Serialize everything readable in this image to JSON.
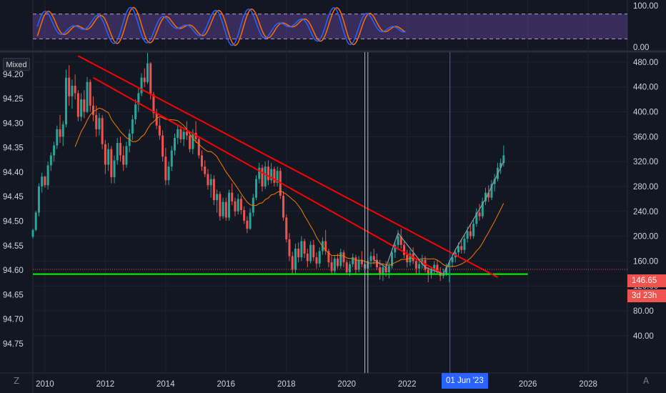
{
  "toolbar": {
    "scale_mode": "Mixed",
    "bottom_left_btn": "Z",
    "bottom_right_btn": "A"
  },
  "colors": {
    "background": "#131722",
    "grid": "#1f2330",
    "axis_line": "#2a2e39",
    "up": "#26a69a",
    "down": "#ef5350",
    "trendline": "#ff0000",
    "support": "#00ff00",
    "ma": "#f57c00",
    "rsi_k": "#2962ff",
    "rsi_d": "#ff6d00",
    "rsi_band": "#7e57c2",
    "crosshair": "#2962ff",
    "price_tag": "#ef5350"
  },
  "price_label": "146.65",
  "countdown_label": "3d 23h",
  "crosshair_date": "01 Jun '23",
  "chart_data": {
    "type": "candlestick",
    "x_ticks": [
      "2010",
      "2012",
      "2014",
      "2016",
      "2018",
      "2020",
      "2022",
      "2024",
      "2026",
      "2028"
    ],
    "xlim": [
      2009.6,
      2029.3
    ],
    "right_axis": {
      "ticks": [
        "480.00",
        "440.00",
        "400.00",
        "360.00",
        "320.00",
        "280.00",
        "240.00",
        "200.00",
        "160.00",
        "120.00",
        "80.00",
        "40.00"
      ],
      "ylim": [
        -20,
        496
      ]
    },
    "left_axis": {
      "ticks": [
        "94.20",
        "94.25",
        "94.30",
        "94.35",
        "94.40",
        "94.45",
        "94.50",
        "94.55",
        "94.60",
        "94.65",
        "94.70",
        "94.75"
      ],
      "ylim": [
        94.155,
        94.81
      ]
    },
    "oscillator": {
      "ticks": [
        "100.00",
        "0.00"
      ],
      "upper_band": 80,
      "lower_band": 20
    },
    "trendlines": [
      {
        "from": [
          2011.1,
          490
        ],
        "to": [
          2025.0,
          134
        ]
      },
      {
        "from": [
          2011.6,
          455
        ],
        "to": [
          2023.2,
          139
        ]
      }
    ],
    "support_line": {
      "value": 139,
      "from": 2009.6,
      "to": 2026.0
    },
    "vertical_markers": [
      2020.6,
      2020.7,
      2023.42
    ],
    "candles": [
      [
        2009.6,
        199,
        212,
        196,
        210
      ],
      [
        2009.7,
        210,
        241,
        208,
        238
      ],
      [
        2009.8,
        238,
        285,
        232,
        280
      ],
      [
        2009.9,
        280,
        302,
        270,
        296
      ],
      [
        2010.0,
        296,
        297,
        278,
        282
      ],
      [
        2010.1,
        282,
        320,
        275,
        314
      ],
      [
        2010.2,
        314,
        335,
        305,
        330
      ],
      [
        2010.3,
        330,
        352,
        320,
        346
      ],
      [
        2010.4,
        346,
        378,
        340,
        372
      ],
      [
        2010.5,
        372,
        395,
        350,
        360
      ],
      [
        2010.6,
        360,
        385,
        345,
        380
      ],
      [
        2010.7,
        380,
        468,
        375,
        455
      ],
      [
        2010.8,
        455,
        475,
        410,
        425
      ],
      [
        2010.9,
        425,
        452,
        405,
        442
      ],
      [
        2011.0,
        442,
        460,
        420,
        430
      ],
      [
        2011.1,
        430,
        435,
        385,
        392
      ],
      [
        2011.2,
        392,
        430,
        385,
        420
      ],
      [
        2011.3,
        420,
        435,
        390,
        400
      ],
      [
        2011.4,
        400,
        456,
        398,
        448
      ],
      [
        2011.5,
        448,
        452,
        400,
        410
      ],
      [
        2011.6,
        410,
        425,
        385,
        395
      ],
      [
        2011.7,
        395,
        410,
        360,
        372
      ],
      [
        2011.8,
        372,
        398,
        362,
        390
      ],
      [
        2011.9,
        390,
        395,
        340,
        348
      ],
      [
        2012.0,
        348,
        355,
        300,
        315
      ],
      [
        2012.1,
        315,
        350,
        305,
        340
      ],
      [
        2012.2,
        340,
        345,
        285,
        295
      ],
      [
        2012.3,
        295,
        330,
        285,
        322
      ],
      [
        2012.4,
        322,
        358,
        315,
        350
      ],
      [
        2012.5,
        350,
        360,
        320,
        330
      ],
      [
        2012.6,
        330,
        345,
        305,
        315
      ],
      [
        2012.7,
        315,
        352,
        310,
        345
      ],
      [
        2012.8,
        345,
        372,
        335,
        365
      ],
      [
        2012.9,
        365,
        395,
        355,
        388
      ],
      [
        2013.0,
        388,
        420,
        380,
        412
      ],
      [
        2013.1,
        412,
        438,
        400,
        430
      ],
      [
        2013.2,
        430,
        462,
        425,
        455
      ],
      [
        2013.3,
        455,
        470,
        440,
        448
      ],
      [
        2013.4,
        448,
        495,
        445,
        478
      ],
      [
        2013.5,
        478,
        480,
        420,
        428
      ],
      [
        2013.6,
        428,
        432,
        390,
        398
      ],
      [
        2013.7,
        398,
        405,
        372,
        378
      ],
      [
        2013.8,
        378,
        390,
        355,
        362
      ],
      [
        2013.9,
        362,
        370,
        320,
        328
      ],
      [
        2014.0,
        328,
        342,
        282,
        290
      ],
      [
        2014.1,
        290,
        320,
        282,
        312
      ],
      [
        2014.2,
        312,
        345,
        305,
        338
      ],
      [
        2014.3,
        338,
        365,
        330,
        358
      ],
      [
        2014.4,
        358,
        380,
        348,
        372
      ],
      [
        2014.5,
        372,
        378,
        350,
        356
      ],
      [
        2014.6,
        356,
        372,
        345,
        368
      ],
      [
        2014.7,
        368,
        385,
        355,
        362
      ],
      [
        2014.8,
        362,
        368,
        335,
        340
      ],
      [
        2014.9,
        340,
        372,
        332,
        366
      ],
      [
        2015.0,
        366,
        385,
        350,
        356
      ],
      [
        2015.1,
        356,
        360,
        325,
        330
      ],
      [
        2015.2,
        330,
        338,
        305,
        312
      ],
      [
        2015.3,
        312,
        322,
        295,
        300
      ],
      [
        2015.4,
        300,
        308,
        275,
        282
      ],
      [
        2015.5,
        282,
        300,
        262,
        292
      ],
      [
        2015.6,
        292,
        298,
        250,
        258
      ],
      [
        2015.7,
        258,
        275,
        238,
        268
      ],
      [
        2015.8,
        268,
        272,
        225,
        232
      ],
      [
        2015.9,
        232,
        262,
        228,
        255
      ],
      [
        2016.0,
        255,
        262,
        225,
        230
      ],
      [
        2016.1,
        230,
        275,
        225,
        270
      ],
      [
        2016.2,
        270,
        285,
        250,
        256
      ],
      [
        2016.3,
        256,
        262,
        232,
        240
      ],
      [
        2016.4,
        240,
        268,
        235,
        260
      ],
      [
        2016.5,
        260,
        265,
        235,
        242
      ],
      [
        2016.6,
        242,
        248,
        220,
        225
      ],
      [
        2016.7,
        225,
        232,
        205,
        212
      ],
      [
        2016.8,
        212,
        245,
        210,
        238
      ],
      [
        2016.9,
        238,
        268,
        232,
        262
      ],
      [
        2017.0,
        262,
        298,
        258,
        292
      ],
      [
        2017.1,
        292,
        318,
        285,
        310
      ],
      [
        2017.2,
        310,
        315,
        272,
        280
      ],
      [
        2017.3,
        280,
        320,
        276,
        312
      ],
      [
        2017.4,
        312,
        322,
        282,
        290
      ],
      [
        2017.5,
        290,
        318,
        285,
        308
      ],
      [
        2017.6,
        308,
        312,
        280,
        286
      ],
      [
        2017.7,
        286,
        312,
        280,
        305
      ],
      [
        2017.8,
        305,
        310,
        260,
        265
      ],
      [
        2017.9,
        265,
        272,
        225,
        230
      ],
      [
        2018.0,
        230,
        235,
        190,
        195
      ],
      [
        2018.1,
        195,
        205,
        160,
        168
      ],
      [
        2018.2,
        168,
        175,
        140,
        146
      ],
      [
        2018.3,
        146,
        188,
        140,
        180
      ],
      [
        2018.4,
        180,
        190,
        158,
        166
      ],
      [
        2018.5,
        166,
        200,
        160,
        192
      ],
      [
        2018.6,
        192,
        196,
        165,
        172
      ],
      [
        2018.7,
        172,
        180,
        150,
        160
      ],
      [
        2018.8,
        160,
        192,
        156,
        186
      ],
      [
        2018.9,
        186,
        194,
        160,
        166
      ],
      [
        2019.0,
        166,
        174,
        148,
        156
      ],
      [
        2019.1,
        156,
        182,
        150,
        176
      ],
      [
        2019.2,
        176,
        198,
        170,
        192
      ],
      [
        2019.3,
        192,
        210,
        170,
        176
      ],
      [
        2019.4,
        176,
        180,
        150,
        158
      ],
      [
        2019.5,
        158,
        168,
        138,
        144
      ],
      [
        2019.6,
        144,
        170,
        140,
        164
      ],
      [
        2019.7,
        164,
        172,
        148,
        152
      ],
      [
        2019.8,
        152,
        180,
        148,
        174
      ],
      [
        2019.9,
        174,
        178,
        150,
        158
      ],
      [
        2020.0,
        158,
        162,
        138,
        142
      ],
      [
        2020.1,
        142,
        160,
        136,
        155
      ],
      [
        2020.2,
        155,
        172,
        150,
        166
      ],
      [
        2020.3,
        166,
        170,
        140,
        146
      ],
      [
        2020.4,
        146,
        168,
        142,
        162
      ],
      [
        2020.5,
        162,
        176,
        150,
        155
      ],
      [
        2020.6,
        155,
        160,
        140,
        148
      ],
      [
        2020.7,
        148,
        165,
        130,
        160
      ],
      [
        2020.8,
        160,
        175,
        150,
        168
      ],
      [
        2020.9,
        168,
        180,
        155,
        162
      ],
      [
        2021.0,
        162,
        172,
        146,
        150
      ],
      [
        2021.1,
        150,
        162,
        130,
        140
      ],
      [
        2021.2,
        140,
        156,
        128,
        150
      ],
      [
        2021.3,
        150,
        160,
        135,
        142
      ],
      [
        2021.4,
        142,
        158,
        132,
        152
      ],
      [
        2021.5,
        152,
        180,
        148,
        174
      ],
      [
        2021.6,
        174,
        192,
        165,
        186
      ],
      [
        2021.7,
        186,
        210,
        178,
        200
      ],
      [
        2021.8,
        200,
        212,
        180,
        186
      ],
      [
        2021.9,
        186,
        192,
        165,
        170
      ],
      [
        2022.0,
        170,
        178,
        150,
        158
      ],
      [
        2022.1,
        158,
        178,
        152,
        172
      ],
      [
        2022.2,
        172,
        182,
        155,
        160
      ],
      [
        2022.3,
        160,
        165,
        140,
        148
      ],
      [
        2022.4,
        148,
        160,
        138,
        155
      ],
      [
        2022.5,
        155,
        170,
        148,
        162
      ],
      [
        2022.6,
        162,
        168,
        142,
        146
      ],
      [
        2022.7,
        146,
        150,
        126,
        138
      ],
      [
        2022.8,
        138,
        150,
        132,
        146
      ],
      [
        2022.9,
        146,
        160,
        140,
        154
      ],
      [
        2023.0,
        154,
        162,
        138,
        142
      ],
      [
        2023.1,
        142,
        150,
        128,
        136
      ],
      [
        2023.2,
        136,
        148,
        132,
        140
      ],
      [
        2023.3,
        140,
        156,
        136,
        150
      ],
      [
        2023.4,
        150,
        162,
        126,
        158
      ],
      [
        2023.5,
        158,
        172,
        150,
        166
      ],
      [
        2023.6,
        166,
        180,
        158,
        174
      ],
      [
        2023.7,
        174,
        190,
        168,
        184
      ],
      [
        2023.8,
        184,
        196,
        172,
        178
      ],
      [
        2023.9,
        178,
        202,
        172,
        196
      ],
      [
        2024.0,
        196,
        215,
        190,
        208
      ],
      [
        2024.1,
        208,
        220,
        195,
        200
      ],
      [
        2024.2,
        200,
        226,
        196,
        220
      ],
      [
        2024.3,
        220,
        245,
        215,
        238
      ],
      [
        2024.4,
        238,
        252,
        225,
        232
      ],
      [
        2024.5,
        232,
        262,
        228,
        256
      ],
      [
        2024.6,
        256,
        278,
        250,
        270
      ],
      [
        2024.7,
        270,
        282,
        255,
        262
      ],
      [
        2024.8,
        262,
        290,
        258,
        284
      ],
      [
        2024.9,
        284,
        300,
        272,
        292
      ],
      [
        2025.0,
        292,
        318,
        288,
        310
      ],
      [
        2025.1,
        310,
        325,
        300,
        318
      ],
      [
        2025.2,
        318,
        346,
        312,
        330
      ]
    ]
  }
}
